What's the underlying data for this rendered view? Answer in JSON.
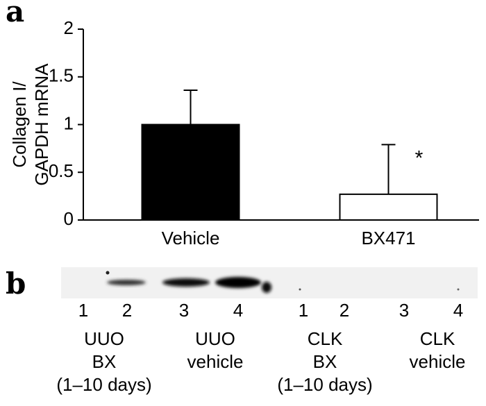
{
  "panel_labels": [
    "a",
    "b"
  ],
  "chart_data": {
    "type": "bar",
    "ylabel": [
      "Collagen I/",
      "GAPDH mRNA"
    ],
    "categories": [
      "Vehicle",
      "BX471"
    ],
    "values": [
      1.0,
      0.27
    ],
    "errors": [
      0.36,
      0.52
    ],
    "colors": [
      "#000000",
      "#ffffff"
    ],
    "ylim": [
      0,
      2
    ],
    "yticks": [
      0,
      0.5,
      1,
      1.5,
      2
    ],
    "annotation": "*"
  },
  "blot": {
    "groups": [
      {
        "lanes": [
          "1",
          "2"
        ],
        "label": [
          "UUO",
          "BX",
          "(1–10 days)"
        ]
      },
      {
        "lanes": [
          "3",
          "4"
        ],
        "label": [
          "UUO",
          "vehicle"
        ]
      },
      {
        "lanes": [
          "1",
          "2"
        ],
        "label": [
          "CLK",
          "BX",
          "(1–10 days)"
        ]
      },
      {
        "lanes": [
          "3",
          "4"
        ],
        "label": [
          "CLK",
          "vehicle"
        ]
      }
    ]
  }
}
